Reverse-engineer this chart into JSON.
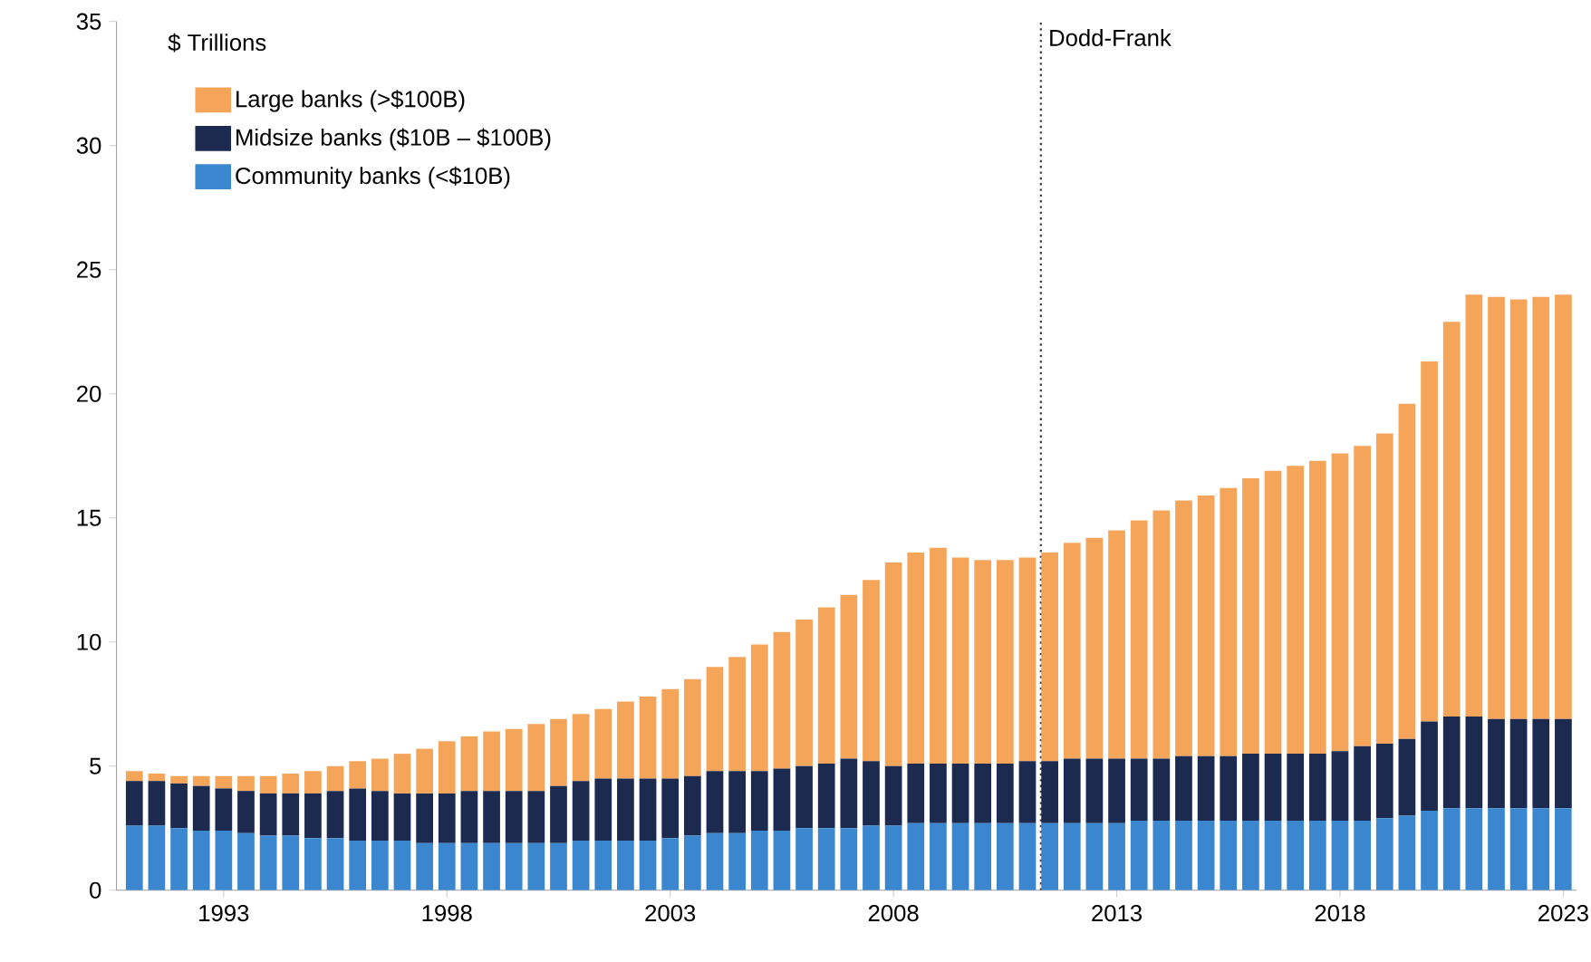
{
  "chart_data": {
    "type": "bar",
    "stacked": true,
    "ylabel": "$ Trillions",
    "x": [
      1991.0,
      1991.5,
      1992.0,
      1992.5,
      1993.0,
      1993.5,
      1994.0,
      1994.5,
      1995.0,
      1995.5,
      1996.0,
      1996.5,
      1997.0,
      1997.5,
      1998.0,
      1998.5,
      1999.0,
      1999.5,
      2000.0,
      2000.5,
      2001.0,
      2001.5,
      2002.0,
      2002.5,
      2003.0,
      2003.5,
      2004.0,
      2004.5,
      2005.0,
      2005.5,
      2006.0,
      2006.5,
      2007.0,
      2007.5,
      2008.0,
      2008.5,
      2009.0,
      2009.5,
      2010.0,
      2010.5,
      2011.0,
      2011.5,
      2012.0,
      2012.5,
      2013.0,
      2013.5,
      2014.0,
      2014.5,
      2015.0,
      2015.5,
      2016.0,
      2016.5,
      2017.0,
      2017.5,
      2018.0,
      2018.5,
      2019.0,
      2019.5,
      2020.0,
      2020.5,
      2021.0,
      2021.5,
      2022.0,
      2022.5,
      2023.0
    ],
    "series": [
      {
        "name": "Community banks (<$10B)",
        "color": "#3a87d0",
        "values": [
          2.6,
          2.6,
          2.5,
          2.4,
          2.4,
          2.3,
          2.2,
          2.2,
          2.1,
          2.1,
          2.0,
          2.0,
          2.0,
          1.9,
          1.9,
          1.9,
          1.9,
          1.9,
          1.9,
          1.9,
          2.0,
          2.0,
          2.0,
          2.0,
          2.1,
          2.2,
          2.3,
          2.3,
          2.4,
          2.4,
          2.5,
          2.5,
          2.5,
          2.6,
          2.6,
          2.7,
          2.7,
          2.7,
          2.7,
          2.7,
          2.7,
          2.7,
          2.7,
          2.7,
          2.7,
          2.8,
          2.8,
          2.8,
          2.8,
          2.8,
          2.8,
          2.8,
          2.8,
          2.8,
          2.8,
          2.8,
          2.9,
          3.0,
          3.2,
          3.3,
          3.3,
          3.3,
          3.3,
          3.3,
          3.3
        ]
      },
      {
        "name": "Midsize banks ($10B – $100B)",
        "color": "#1c2a4f",
        "values": [
          1.8,
          1.8,
          1.8,
          1.8,
          1.7,
          1.7,
          1.7,
          1.7,
          1.8,
          1.9,
          2.1,
          2.0,
          1.9,
          2.0,
          2.0,
          2.1,
          2.1,
          2.1,
          2.1,
          2.3,
          2.4,
          2.5,
          2.5,
          2.5,
          2.4,
          2.4,
          2.5,
          2.5,
          2.4,
          2.5,
          2.5,
          2.6,
          2.8,
          2.6,
          2.4,
          2.4,
          2.4,
          2.4,
          2.4,
          2.4,
          2.5,
          2.5,
          2.6,
          2.6,
          2.6,
          2.5,
          2.5,
          2.6,
          2.6,
          2.6,
          2.7,
          2.7,
          2.7,
          2.7,
          2.8,
          3.0,
          3.0,
          3.1,
          3.6,
          3.7,
          3.7,
          3.6,
          3.6,
          3.6,
          3.6
        ]
      },
      {
        "name": "Large banks (>$100B)",
        "color": "#f5a55a",
        "values": [
          0.4,
          0.3,
          0.3,
          0.4,
          0.5,
          0.6,
          0.7,
          0.8,
          0.9,
          1.0,
          1.1,
          1.3,
          1.6,
          1.8,
          2.1,
          2.2,
          2.4,
          2.5,
          2.7,
          2.7,
          2.7,
          2.8,
          3.1,
          3.3,
          3.6,
          3.9,
          4.2,
          4.6,
          5.1,
          5.5,
          5.9,
          6.3,
          6.6,
          7.3,
          8.2,
          8.5,
          8.7,
          8.3,
          8.2,
          8.2,
          8.2,
          8.4,
          8.7,
          8.9,
          9.2,
          9.6,
          10.0,
          10.3,
          10.5,
          10.8,
          11.1,
          11.4,
          11.6,
          11.8,
          12.0,
          12.1,
          12.5,
          13.5,
          14.5,
          15.9,
          17.0,
          17.0,
          16.9,
          17.0,
          17.1
        ]
      }
    ],
    "xlim": [
      1990.6,
      2023.3
    ],
    "xticks": [
      1993,
      1998,
      2003,
      2008,
      2013,
      2018,
      2023
    ],
    "ylim": [
      0,
      35
    ],
    "yticks": [
      0,
      5,
      10,
      15,
      20,
      25,
      30,
      35
    ],
    "ref_lines": [
      {
        "axis": "x",
        "value": 2011.3,
        "label": "Dodd-Frank",
        "line_style": "dotted"
      }
    ],
    "legend": "top left"
  }
}
